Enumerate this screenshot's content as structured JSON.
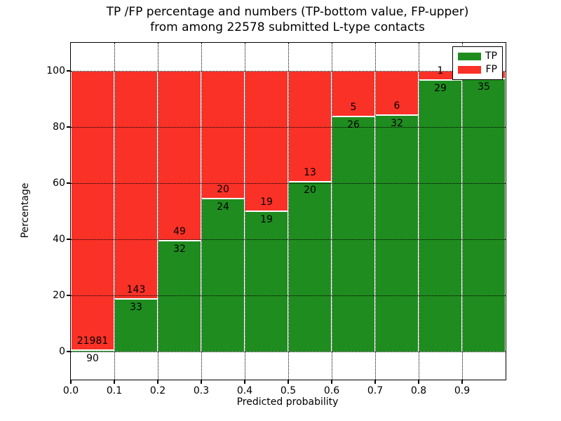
{
  "title": {
    "line1": "TP /FP percentage and numbers (TP-bottom value, FP-upper)",
    "line2": "from among 22578 submitted L-type contacts"
  },
  "axes": {
    "xlabel": "Predicted probability",
    "ylabel": "Percentage",
    "yticks": [
      0,
      20,
      40,
      60,
      80,
      100
    ],
    "xticks": [
      "0.0",
      "0.1",
      "0.2",
      "0.3",
      "0.4",
      "0.5",
      "0.6",
      "0.7",
      "0.8",
      "0.9"
    ]
  },
  "legend": {
    "items": [
      {
        "label": "TP",
        "color": "#1f8c1f"
      },
      {
        "label": "FP",
        "color": "#f93127"
      }
    ]
  },
  "chart_data": {
    "type": "bar",
    "stacked": true,
    "normalized": "percent of bin total",
    "title": "TP /FP percentage and numbers (TP-bottom value, FP-upper) from among 22578 submitted L-type contacts",
    "xlabel": "Predicted probability",
    "ylabel": "Percentage",
    "xlim": [
      0.0,
      1.0
    ],
    "ylim": [
      -10,
      110
    ],
    "grid": "dotted",
    "legend_position": "upper right",
    "bin_width": 0.1,
    "bin_starts": [
      0.0,
      0.1,
      0.2,
      0.3,
      0.4,
      0.5,
      0.6,
      0.7,
      0.8,
      0.9
    ],
    "series": [
      {
        "name": "TP",
        "color": "#1f8c1f",
        "counts": [
          90,
          33,
          32,
          24,
          19,
          20,
          26,
          32,
          29,
          35
        ]
      },
      {
        "name": "FP",
        "color": "#f93127",
        "counts": [
          21981,
          143,
          49,
          20,
          19,
          13,
          5,
          6,
          1,
          1
        ]
      }
    ],
    "tp_percent_per_bin": [
      0.41,
      18.75,
      39.51,
      54.55,
      50.0,
      60.61,
      83.87,
      84.21,
      96.67,
      97.22
    ],
    "total_submitted": 22578
  }
}
